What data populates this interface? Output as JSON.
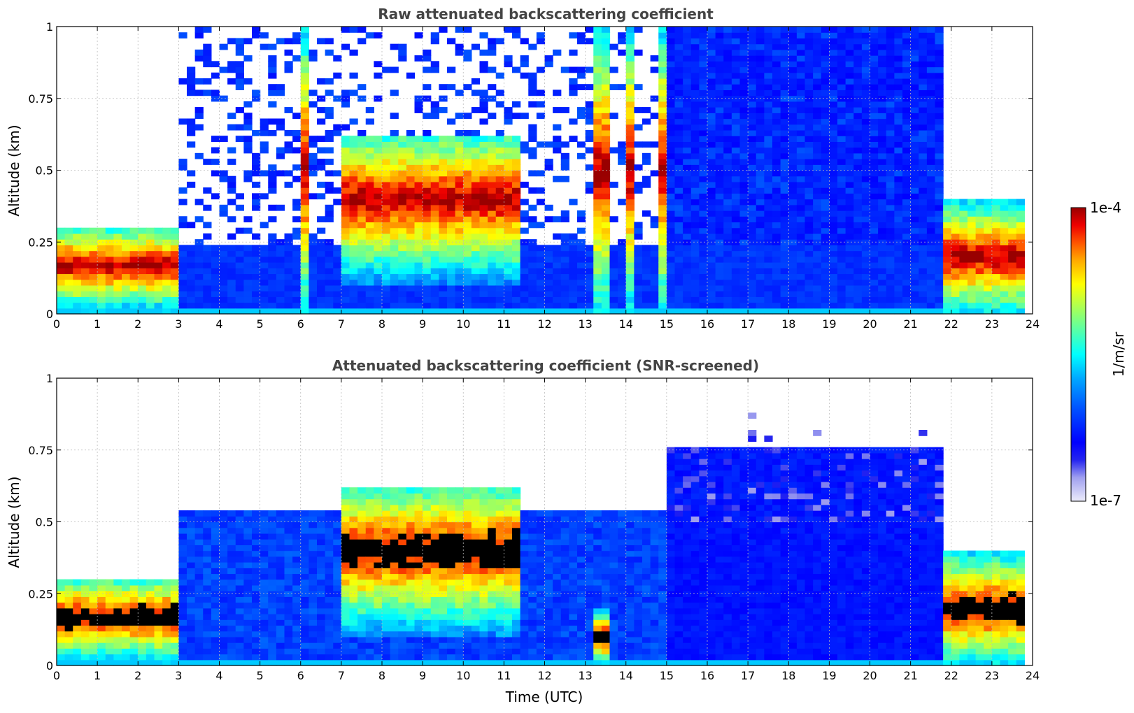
{
  "chart_data": [
    {
      "type": "heatmap",
      "title": "Raw attenuated backscattering coefficient",
      "xlabel": "",
      "ylabel": "Altitude (km)",
      "xlim": [
        0,
        24
      ],
      "ylim": [
        0,
        1
      ],
      "x_ticks": [
        0,
        1,
        2,
        3,
        4,
        5,
        6,
        7,
        8,
        9,
        10,
        11,
        12,
        13,
        14,
        15,
        16,
        17,
        18,
        19,
        20,
        21,
        22,
        23,
        24
      ],
      "y_ticks": [
        0,
        0.25,
        0.5,
        0.75,
        1
      ],
      "y_tick_labels": [
        "0",
        "0.25",
        "0.5",
        "0.75",
        "1"
      ],
      "grid": true,
      "features": [
        {
          "start": 0.0,
          "end": 3.0,
          "base": 0.0,
          "top": 0.3,
          "peak": 0.17,
          "level": "high"
        },
        {
          "start": 5.9,
          "end": 6.1,
          "base": 0.0,
          "top": 1.0,
          "level": "high"
        },
        {
          "start": 6.9,
          "end": 11.3,
          "base": 0.1,
          "top": 0.62,
          "peak": 0.4,
          "level": "high"
        },
        {
          "start": 13.2,
          "end": 13.6,
          "base": 0.0,
          "top": 1.0,
          "level": "high"
        },
        {
          "start": 14.0,
          "end": 14.2,
          "base": 0.0,
          "top": 1.0,
          "level": "high"
        },
        {
          "start": 14.8,
          "end": 14.9,
          "base": 0.0,
          "top": 1.0,
          "level": "high"
        },
        {
          "start": 15.0,
          "end": 21.8,
          "base": 0.0,
          "top": 1.0,
          "level": "low"
        },
        {
          "start": 21.8,
          "end": 23.8,
          "base": 0.0,
          "top": 0.4,
          "peak": 0.2,
          "level": "high"
        }
      ]
    },
    {
      "type": "heatmap",
      "title": "Attenuated backscattering coefficient (SNR-screened)",
      "xlabel": "Time (UTC)",
      "ylabel": "Altitude (km)",
      "xlim": [
        0,
        24
      ],
      "ylim": [
        0,
        1
      ],
      "x_ticks": [
        0,
        1,
        2,
        3,
        4,
        5,
        6,
        7,
        8,
        9,
        10,
        11,
        12,
        13,
        14,
        15,
        16,
        17,
        18,
        19,
        20,
        21,
        22,
        23,
        24
      ],
      "y_ticks": [
        0,
        0.25,
        0.5,
        0.75,
        1
      ],
      "y_tick_labels": [
        "0",
        "0.25",
        "0.5",
        "0.75",
        "1"
      ],
      "grid": true,
      "features": [
        {
          "start": 0.0,
          "end": 3.0,
          "base": 0.0,
          "top": 0.3,
          "peak": 0.17,
          "level": "saturated"
        },
        {
          "start": 6.9,
          "end": 11.3,
          "base": 0.1,
          "top": 0.62,
          "peak": 0.4,
          "level": "saturated"
        },
        {
          "start": 13.2,
          "end": 13.6,
          "base": 0.0,
          "top": 0.2,
          "level": "saturated"
        },
        {
          "start": 15.0,
          "end": 21.8,
          "base": 0.0,
          "top": 0.75,
          "level": "low"
        },
        {
          "start": 21.8,
          "end": 23.8,
          "base": 0.0,
          "top": 0.4,
          "peak": 0.2,
          "level": "saturated"
        }
      ]
    }
  ],
  "colorbar": {
    "min_label": "1e-7",
    "max_label": "1e-4",
    "label": "1/m/sr",
    "colors": [
      "#ececfb",
      "#a0a0ef",
      "#2525ef",
      "#0000ff",
      "#0055ff",
      "#00aaff",
      "#00ffff",
      "#55ffaa",
      "#aaff55",
      "#ffff00",
      "#ffaa00",
      "#ff5500",
      "#ee0000",
      "#990000"
    ]
  }
}
